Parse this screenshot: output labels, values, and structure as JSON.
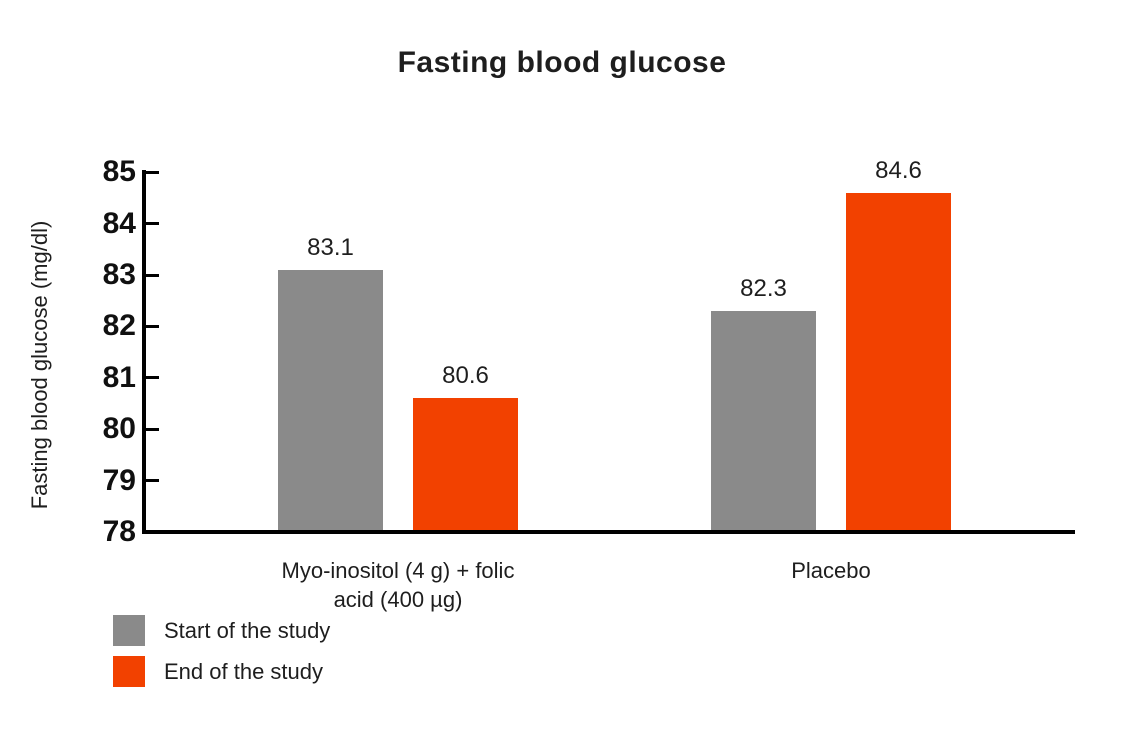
{
  "chart_data": {
    "type": "bar",
    "title": "Fasting blood glucose",
    "ylabel": "Fasting blood glucose (mg/dl)",
    "xlabel": "",
    "categories": [
      "Myo-inositol (4 g) + folic\nacid (400 µg)",
      "Placebo"
    ],
    "series": [
      {
        "name": "Start of the study",
        "color": "#8a8a8a",
        "values": [
          83.1,
          82.3
        ],
        "value_labels": [
          "83.1",
          "82.3"
        ]
      },
      {
        "name": "End of the study",
        "color": "#f24100",
        "values": [
          80.6,
          84.6
        ],
        "value_labels": [
          "80.6",
          "84.6"
        ]
      }
    ],
    "ylim": [
      78,
      85
    ],
    "yticks": [
      78,
      79,
      80,
      81,
      82,
      83,
      84,
      85
    ],
    "grid": false,
    "legend_position": "bottom-left",
    "axis_color": "#000000",
    "text_color": "#1e1e1e",
    "background_color": "#ffffff"
  }
}
